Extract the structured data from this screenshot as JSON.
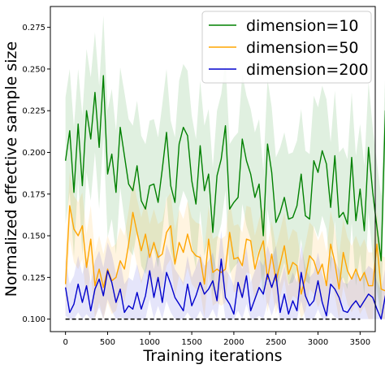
{
  "chart_data": {
    "type": "line",
    "title": "",
    "xlabel": "Training iterations",
    "ylabel": "Normalized effective sample size",
    "xlim": [
      -180,
      3680
    ],
    "ylim": [
      0.0925,
      0.2875
    ],
    "xticks": [
      0,
      500,
      1000,
      1500,
      2000,
      2500,
      3000,
      3500
    ],
    "yticks": [
      0.1,
      0.125,
      0.15,
      0.175,
      0.2,
      0.225,
      0.25,
      0.275
    ],
    "ytick_labels": [
      "0.100",
      "0.125",
      "0.150",
      "0.175",
      "0.200",
      "0.225",
      "0.250",
      "0.275"
    ],
    "x_step": 50,
    "legend_position": "top-right",
    "grid": false,
    "baseline": {
      "y": 0.1,
      "style": "dashed",
      "color": "#000000"
    },
    "series": [
      {
        "name": "dimension=10",
        "color": "#008000",
        "band_color": "#008000",
        "band_opacity": 0.12,
        "values": [
          0.195,
          0.213,
          0.176,
          0.217,
          0.18,
          0.225,
          0.208,
          0.236,
          0.203,
          0.246,
          0.187,
          0.199,
          0.176,
          0.215,
          0.198,
          0.181,
          0.177,
          0.192,
          0.171,
          0.166,
          0.18,
          0.181,
          0.17,
          0.19,
          0.212,
          0.18,
          0.17,
          0.205,
          0.215,
          0.21,
          0.183,
          0.169,
          0.204,
          0.177,
          0.187,
          0.152,
          0.186,
          0.196,
          0.216,
          0.166,
          0.17,
          0.173,
          0.208,
          0.195,
          0.187,
          0.173,
          0.181,
          0.15,
          0.205,
          0.188,
          0.158,
          0.164,
          0.173,
          0.16,
          0.161,
          0.168,
          0.187,
          0.162,
          0.16,
          0.195,
          0.188,
          0.201,
          0.193,
          0.167,
          0.198,
          0.161,
          0.164,
          0.157,
          0.197,
          0.159,
          0.178,
          0.153,
          0.203,
          0.176,
          0.155,
          0.135,
          0.225,
          0.217,
          0.197,
          0.203,
          0.183,
          0.155,
          0.131,
          0.17,
          0.173,
          0.151,
          0.154,
          0.137,
          0.157,
          0.157,
          0.16,
          0.169
        ],
        "upper": [
          0.233,
          0.25,
          0.215,
          0.25,
          0.222,
          0.262,
          0.245,
          0.272,
          0.24,
          0.282,
          0.225,
          0.238,
          0.213,
          0.251,
          0.236,
          0.22,
          0.216,
          0.231,
          0.21,
          0.205,
          0.219,
          0.22,
          0.209,
          0.229,
          0.25,
          0.219,
          0.209,
          0.243,
          0.253,
          0.249,
          0.222,
          0.208,
          0.243,
          0.216,
          0.226,
          0.191,
          0.225,
          0.235,
          0.255,
          0.205,
          0.209,
          0.212,
          0.247,
          0.234,
          0.226,
          0.212,
          0.22,
          0.189,
          0.244,
          0.227,
          0.197,
          0.203,
          0.212,
          0.199,
          0.2,
          0.207,
          0.226,
          0.201,
          0.199,
          0.234,
          0.227,
          0.24,
          0.232,
          0.206,
          0.237,
          0.2,
          0.203,
          0.196,
          0.236,
          0.198,
          0.217,
          0.192,
          0.242,
          0.215,
          0.194,
          0.174,
          0.25,
          0.244,
          0.232,
          0.24,
          0.221,
          0.194,
          0.17,
          0.209,
          0.212,
          0.19,
          0.193,
          0.176,
          0.196,
          0.196,
          0.199,
          0.208
        ],
        "lower": [
          0.157,
          0.176,
          0.137,
          0.184,
          0.138,
          0.188,
          0.171,
          0.2,
          0.166,
          0.21,
          0.149,
          0.16,
          0.139,
          0.179,
          0.16,
          0.142,
          0.138,
          0.153,
          0.132,
          0.127,
          0.141,
          0.142,
          0.131,
          0.151,
          0.174,
          0.141,
          0.131,
          0.167,
          0.177,
          0.171,
          0.144,
          0.13,
          0.165,
          0.138,
          0.148,
          0.113,
          0.147,
          0.157,
          0.177,
          0.127,
          0.131,
          0.134,
          0.169,
          0.156,
          0.148,
          0.134,
          0.142,
          0.111,
          0.166,
          0.149,
          0.119,
          0.125,
          0.134,
          0.121,
          0.122,
          0.129,
          0.148,
          0.123,
          0.121,
          0.156,
          0.149,
          0.162,
          0.154,
          0.128,
          0.159,
          0.122,
          0.125,
          0.118,
          0.158,
          0.12,
          0.139,
          0.114,
          0.164,
          0.137,
          0.116,
          0.1,
          0.2,
          0.19,
          0.162,
          0.166,
          0.145,
          0.116,
          0.1,
          0.131,
          0.134,
          0.112,
          0.115,
          0.1,
          0.118,
          0.118,
          0.121,
          0.13
        ]
      },
      {
        "name": "dimension=50",
        "color": "#FFA500",
        "band_color": "#FFA500",
        "band_opacity": 0.12,
        "values": [
          0.121,
          0.168,
          0.154,
          0.15,
          0.156,
          0.131,
          0.148,
          0.12,
          0.13,
          0.119,
          0.13,
          0.123,
          0.125,
          0.135,
          0.13,
          0.145,
          0.164,
          0.152,
          0.141,
          0.151,
          0.137,
          0.146,
          0.137,
          0.139,
          0.152,
          0.156,
          0.133,
          0.146,
          0.14,
          0.151,
          0.141,
          0.138,
          0.137,
          0.121,
          0.148,
          0.128,
          0.13,
          0.128,
          0.13,
          0.152,
          0.136,
          0.137,
          0.132,
          0.148,
          0.147,
          0.13,
          0.14,
          0.147,
          0.124,
          0.139,
          0.123,
          0.133,
          0.144,
          0.127,
          0.134,
          0.132,
          0.115,
          0.125,
          0.138,
          0.135,
          0.127,
          0.133,
          0.12,
          0.145,
          0.134,
          0.118,
          0.14,
          0.129,
          0.124,
          0.13,
          0.123,
          0.128,
          0.12,
          0.12,
          0.145,
          0.118,
          0.117,
          0.126,
          0.121,
          0.13,
          0.12,
          0.132,
          0.131,
          0.126,
          0.136,
          0.137,
          0.118,
          0.134,
          0.134,
          0.138,
          0.138,
          0.139
        ],
        "upper": [
          0.141,
          0.188,
          0.174,
          0.17,
          0.176,
          0.151,
          0.168,
          0.14,
          0.15,
          0.139,
          0.15,
          0.143,
          0.145,
          0.155,
          0.15,
          0.165,
          0.184,
          0.172,
          0.161,
          0.171,
          0.157,
          0.166,
          0.157,
          0.159,
          0.172,
          0.176,
          0.153,
          0.166,
          0.16,
          0.171,
          0.161,
          0.158,
          0.157,
          0.141,
          0.168,
          0.148,
          0.15,
          0.148,
          0.15,
          0.172,
          0.156,
          0.157,
          0.152,
          0.168,
          0.167,
          0.15,
          0.16,
          0.167,
          0.144,
          0.159,
          0.143,
          0.153,
          0.164,
          0.147,
          0.154,
          0.152,
          0.135,
          0.145,
          0.158,
          0.155,
          0.147,
          0.153,
          0.14,
          0.165,
          0.154,
          0.138,
          0.16,
          0.149,
          0.144,
          0.15,
          0.143,
          0.148,
          0.14,
          0.14,
          0.165,
          0.138,
          0.137,
          0.146,
          0.141,
          0.15,
          0.14,
          0.152,
          0.151,
          0.146,
          0.156,
          0.157,
          0.138,
          0.154,
          0.154,
          0.158,
          0.158,
          0.159
        ],
        "lower": [
          0.101,
          0.148,
          0.134,
          0.13,
          0.136,
          0.111,
          0.128,
          0.1,
          0.11,
          0.1,
          0.11,
          0.103,
          0.105,
          0.115,
          0.11,
          0.125,
          0.144,
          0.132,
          0.121,
          0.131,
          0.117,
          0.126,
          0.117,
          0.119,
          0.132,
          0.136,
          0.113,
          0.126,
          0.12,
          0.131,
          0.121,
          0.118,
          0.117,
          0.101,
          0.128,
          0.108,
          0.11,
          0.108,
          0.11,
          0.132,
          0.116,
          0.117,
          0.112,
          0.128,
          0.127,
          0.11,
          0.12,
          0.127,
          0.104,
          0.119,
          0.103,
          0.113,
          0.124,
          0.107,
          0.114,
          0.112,
          0.1,
          0.105,
          0.118,
          0.115,
          0.107,
          0.113,
          0.1,
          0.125,
          0.114,
          0.1,
          0.12,
          0.109,
          0.104,
          0.11,
          0.103,
          0.108,
          0.1,
          0.1,
          0.125,
          0.1,
          0.1,
          0.106,
          0.101,
          0.11,
          0.1,
          0.112,
          0.111,
          0.106,
          0.116,
          0.117,
          0.1,
          0.114,
          0.114,
          0.118,
          0.118,
          0.119
        ]
      },
      {
        "name": "dimension=200",
        "color": "#0000CD",
        "band_color": "#0000CD",
        "band_opacity": 0.1,
        "values": [
          0.119,
          0.104,
          0.109,
          0.121,
          0.11,
          0.12,
          0.105,
          0.118,
          0.124,
          0.114,
          0.129,
          0.122,
          0.11,
          0.118,
          0.104,
          0.108,
          0.106,
          0.116,
          0.106,
          0.114,
          0.129,
          0.113,
          0.125,
          0.11,
          0.128,
          0.121,
          0.113,
          0.109,
          0.105,
          0.121,
          0.108,
          0.114,
          0.122,
          0.115,
          0.118,
          0.123,
          0.111,
          0.136,
          0.113,
          0.109,
          0.103,
          0.122,
          0.113,
          0.126,
          0.105,
          0.112,
          0.119,
          0.115,
          0.127,
          0.119,
          0.127,
          0.104,
          0.115,
          0.103,
          0.111,
          0.105,
          0.128,
          0.114,
          0.108,
          0.111,
          0.123,
          0.11,
          0.102,
          0.121,
          0.118,
          0.113,
          0.105,
          0.104,
          0.108,
          0.111,
          0.107,
          0.111,
          0.115,
          0.113,
          0.106,
          0.1,
          0.114,
          0.113,
          0.118,
          0.112,
          0.11,
          0.113,
          0.114,
          0.12,
          0.109,
          0.119,
          0.121,
          0.112,
          0.113,
          0.105,
          0.109,
          0.128
        ],
        "upper": [
          0.136,
          0.121,
          0.126,
          0.138,
          0.127,
          0.137,
          0.122,
          0.135,
          0.141,
          0.131,
          0.146,
          0.139,
          0.127,
          0.135,
          0.121,
          0.125,
          0.123,
          0.133,
          0.123,
          0.131,
          0.146,
          0.13,
          0.142,
          0.127,
          0.145,
          0.138,
          0.13,
          0.126,
          0.122,
          0.138,
          0.125,
          0.131,
          0.139,
          0.132,
          0.135,
          0.14,
          0.128,
          0.153,
          0.13,
          0.126,
          0.12,
          0.139,
          0.13,
          0.143,
          0.122,
          0.129,
          0.136,
          0.132,
          0.144,
          0.136,
          0.144,
          0.121,
          0.132,
          0.12,
          0.128,
          0.122,
          0.145,
          0.131,
          0.125,
          0.128,
          0.14,
          0.127,
          0.119,
          0.138,
          0.135,
          0.13,
          0.122,
          0.121,
          0.125,
          0.128,
          0.124,
          0.128,
          0.132,
          0.13,
          0.123,
          0.117,
          0.131,
          0.13,
          0.135,
          0.129,
          0.127,
          0.13,
          0.131,
          0.137,
          0.126,
          0.136,
          0.138,
          0.129,
          0.13,
          0.122,
          0.126,
          0.145
        ],
        "lower": [
          0.102,
          0.1,
          0.1,
          0.104,
          0.1,
          0.103,
          0.1,
          0.101,
          0.107,
          0.1,
          0.112,
          0.105,
          0.1,
          0.101,
          0.1,
          0.1,
          0.1,
          0.1,
          0.1,
          0.1,
          0.112,
          0.1,
          0.108,
          0.1,
          0.111,
          0.104,
          0.1,
          0.1,
          0.1,
          0.104,
          0.1,
          0.1,
          0.105,
          0.1,
          0.101,
          0.106,
          0.1,
          0.119,
          0.1,
          0.1,
          0.1,
          0.105,
          0.1,
          0.109,
          0.1,
          0.1,
          0.102,
          0.1,
          0.11,
          0.102,
          0.11,
          0.1,
          0.1,
          0.1,
          0.1,
          0.1,
          0.111,
          0.1,
          0.1,
          0.1,
          0.106,
          0.1,
          0.1,
          0.104,
          0.101,
          0.1,
          0.1,
          0.1,
          0.1,
          0.1,
          0.1,
          0.1,
          0.1,
          0.1,
          0.1,
          0.1,
          0.1,
          0.1,
          0.101,
          0.1,
          0.1,
          0.1,
          0.1,
          0.103,
          0.1,
          0.102,
          0.104,
          0.1,
          0.1,
          0.1,
          0.1,
          0.111
        ]
      }
    ]
  }
}
